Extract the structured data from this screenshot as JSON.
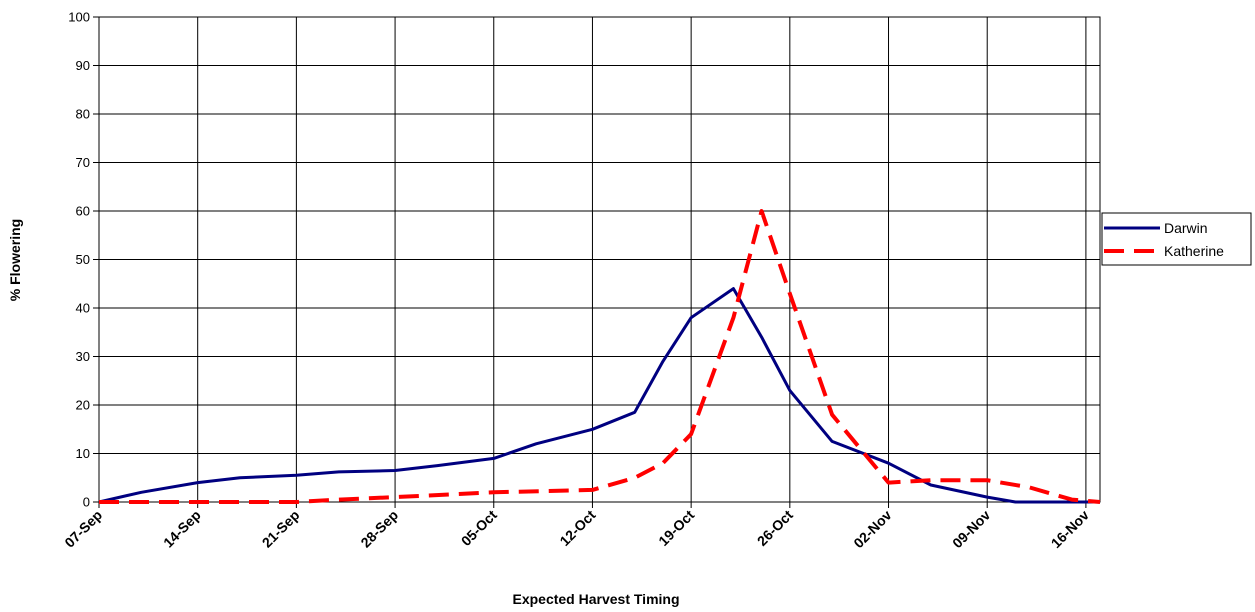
{
  "chart_data": {
    "type": "line",
    "title": "",
    "xlabel": "Expected Harvest Timing",
    "ylabel": "% Flowering",
    "x_ticks": [
      "07-Sep",
      "14-Sep",
      "21-Sep",
      "28-Sep",
      "05-Oct",
      "12-Oct",
      "19-Oct",
      "26-Oct",
      "02-Nov",
      "09-Nov",
      "16-Nov"
    ],
    "y_ticks": [
      0,
      10,
      20,
      30,
      40,
      50,
      60,
      70,
      80,
      90,
      100
    ],
    "ylim": [
      0,
      100
    ],
    "xlim": [
      "07-Sep",
      "17-Nov"
    ],
    "grid": true,
    "legend_position": "right",
    "series": [
      {
        "name": "Darwin",
        "color": "#000080",
        "style": "solid",
        "points": [
          {
            "x": "07-Sep",
            "y": 0
          },
          {
            "x": "10-Sep",
            "y": 2
          },
          {
            "x": "14-Sep",
            "y": 4
          },
          {
            "x": "17-Sep",
            "y": 5
          },
          {
            "x": "21-Sep",
            "y": 5.5
          },
          {
            "x": "24-Sep",
            "y": 6.2
          },
          {
            "x": "28-Sep",
            "y": 6.5
          },
          {
            "x": "01-Oct",
            "y": 7.5
          },
          {
            "x": "05-Oct",
            "y": 9
          },
          {
            "x": "08-Oct",
            "y": 12
          },
          {
            "x": "12-Oct",
            "y": 15
          },
          {
            "x": "15-Oct",
            "y": 18.5
          },
          {
            "x": "17-Oct",
            "y": 29
          },
          {
            "x": "19-Oct",
            "y": 38
          },
          {
            "x": "22-Oct",
            "y": 44
          },
          {
            "x": "24-Oct",
            "y": 34
          },
          {
            "x": "26-Oct",
            "y": 23
          },
          {
            "x": "29-Oct",
            "y": 12.5
          },
          {
            "x": "02-Nov",
            "y": 8
          },
          {
            "x": "05-Nov",
            "y": 3.5
          },
          {
            "x": "09-Nov",
            "y": 1
          },
          {
            "x": "11-Nov",
            "y": 0
          },
          {
            "x": "17-Nov",
            "y": 0
          }
        ]
      },
      {
        "name": "Katherine",
        "color": "#ff0000",
        "style": "dashed",
        "points": [
          {
            "x": "07-Sep",
            "y": 0
          },
          {
            "x": "14-Sep",
            "y": 0
          },
          {
            "x": "21-Sep",
            "y": 0
          },
          {
            "x": "24-Sep",
            "y": 0.5
          },
          {
            "x": "28-Sep",
            "y": 1
          },
          {
            "x": "05-Oct",
            "y": 2
          },
          {
            "x": "12-Oct",
            "y": 2.5
          },
          {
            "x": "15-Oct",
            "y": 5
          },
          {
            "x": "17-Oct",
            "y": 8
          },
          {
            "x": "19-Oct",
            "y": 14
          },
          {
            "x": "22-Oct",
            "y": 38
          },
          {
            "x": "24-Oct",
            "y": 60
          },
          {
            "x": "26-Oct",
            "y": 43
          },
          {
            "x": "29-Oct",
            "y": 18
          },
          {
            "x": "02-Nov",
            "y": 4
          },
          {
            "x": "05-Nov",
            "y": 4.5
          },
          {
            "x": "09-Nov",
            "y": 4.5
          },
          {
            "x": "12-Nov",
            "y": 3
          },
          {
            "x": "15-Nov",
            "y": 0.5
          },
          {
            "x": "17-Nov",
            "y": 0
          }
        ]
      }
    ]
  }
}
